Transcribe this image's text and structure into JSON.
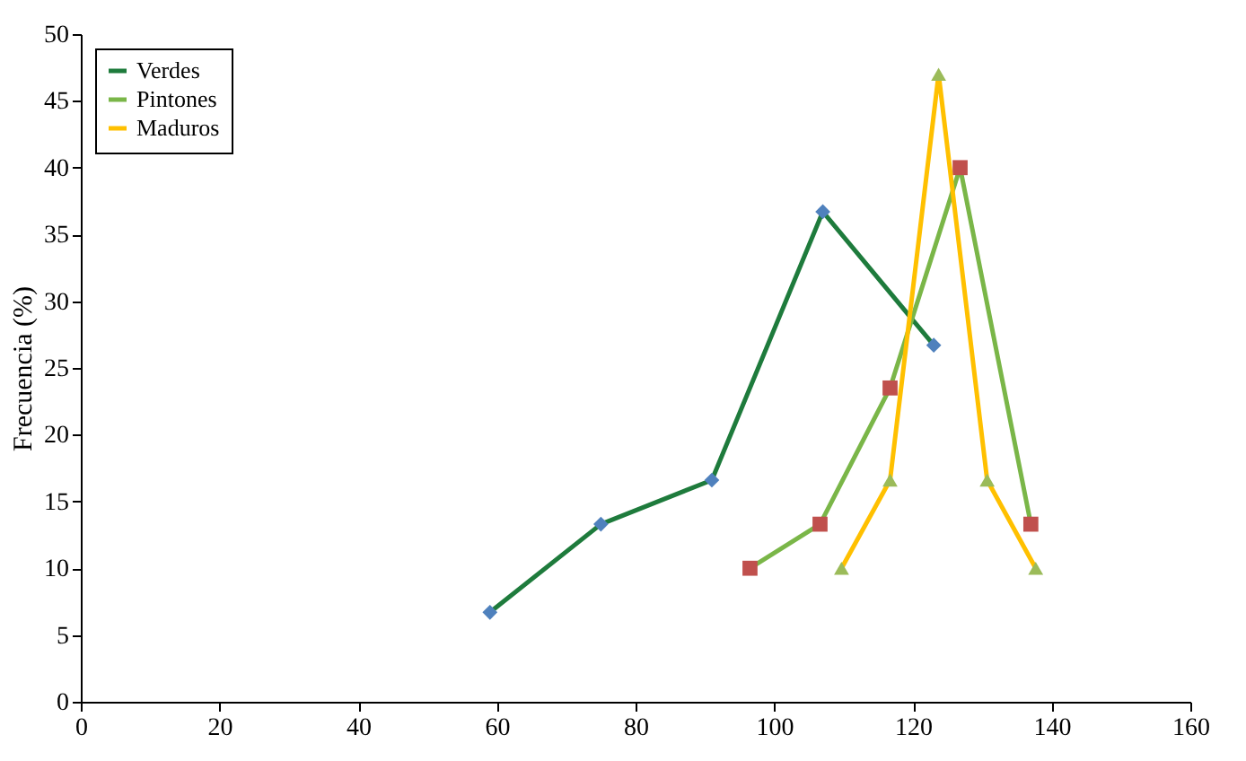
{
  "chart_data": {
    "type": "line",
    "ylabel": "Frecuencia (%)",
    "xlim": [
      0,
      160
    ],
    "xticks": [
      0,
      20,
      40,
      60,
      80,
      100,
      120,
      140,
      160
    ],
    "ylim": [
      0,
      50
    ],
    "yticks": [
      0,
      5,
      10,
      15,
      20,
      25,
      30,
      35,
      40,
      45,
      50
    ],
    "grid": false,
    "legend": "top left",
    "series": [
      {
        "name": "Verdes",
        "color": "#1e7b3c",
        "marker": "diamond",
        "colors": [
          "#4f81bd",
          "#4f81bd",
          "#4f81bd",
          "#4f81bd",
          "#4f81bd"
        ],
        "x": [
          59,
          75,
          91,
          107,
          123
        ],
        "values": [
          6.7,
          13.3,
          16.6,
          36.7,
          26.7
        ]
      },
      {
        "name": "Pintones",
        "color": "#7ab648",
        "marker": "square",
        "colors": [
          "#c0504d",
          "#c0504d",
          "#c0504d",
          "#c0504d",
          "#c0504d"
        ],
        "x": [
          96.5,
          106.6,
          116.7,
          126.8,
          137
        ],
        "values": [
          10,
          13.3,
          23.5,
          40,
          13.3
        ]
      },
      {
        "name": "Maduros",
        "color": "#ffc000",
        "marker": "triangle",
        "colors": [
          "#9bbb59",
          "#9bbb59",
          "#9bbb59",
          "#9bbb59",
          "#9bbb59"
        ],
        "x": [
          109.7,
          116.7,
          123.7,
          130.7,
          137.7
        ],
        "values": [
          10,
          16.6,
          47,
          16.6,
          10
        ]
      }
    ]
  }
}
